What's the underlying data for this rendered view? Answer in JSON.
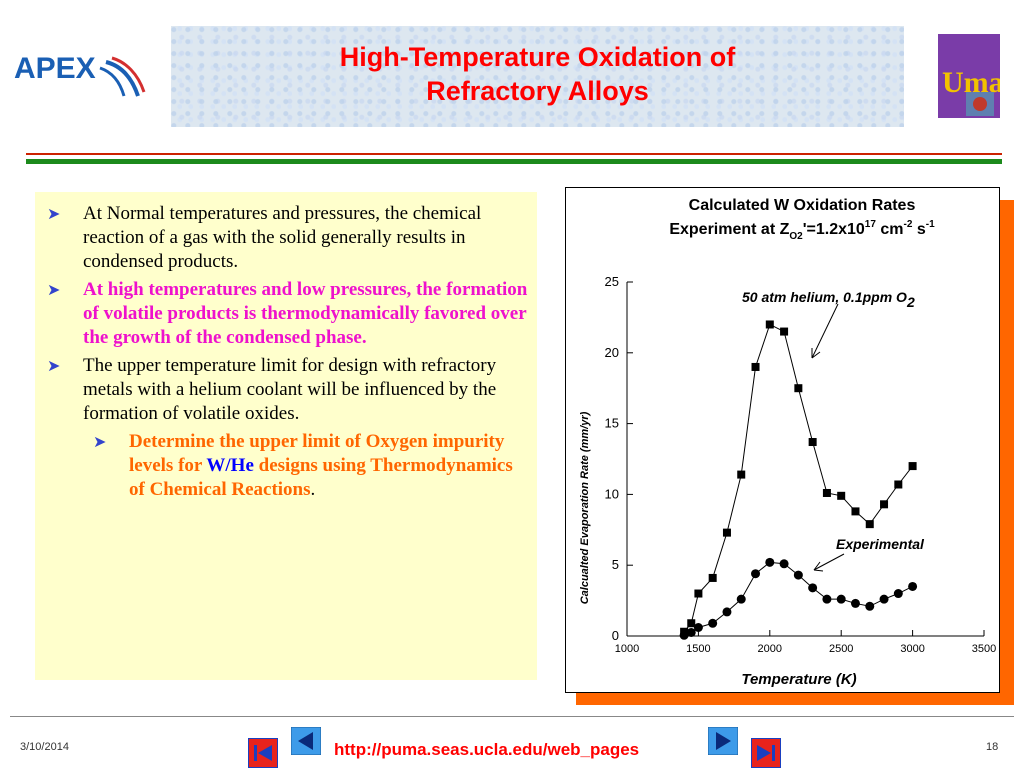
{
  "header": {
    "title_line1": "High-Temperature Oxidation of",
    "title_line2": "Refractory Alloys",
    "logo_left_text": "APEX",
    "logo_right_text": "UmaT"
  },
  "bullets": [
    {
      "level": 1,
      "style": "normal",
      "text": "At Normal temperatures and pressures, the chemical reaction of a gas with the solid generally results in condensed products."
    },
    {
      "level": 1,
      "style": "magenta",
      "text": "At high temperatures and low pressures, the formation of volatile products is thermodynamically favored over the growth of the condensed phase."
    },
    {
      "level": 1,
      "style": "normal",
      "text": "The upper temperature limit for design with refractory metals with a helium coolant will be influenced by the formation of volatile oxides."
    },
    {
      "level": 2,
      "style": "orange",
      "text_a": "Determine the upper limit of Oxygen impurity levels for ",
      "text_b": "W/He",
      "text_c": " designs using Thermodynamics of Chemical Reactions",
      "text_d": "."
    }
  ],
  "chart_data": {
    "type": "scatter",
    "title_line1": "Calculated W Oxidation Rates",
    "title_line2_prefix": "Experiment at Z",
    "title_line2_sub": "O2",
    "title_line2_mid": "'=1.2x10",
    "title_line2_sup1": "17",
    "title_line2_unit": " cm",
    "title_line2_sup2": "-2",
    "title_line2_s": " s",
    "title_line2_sup3": "-1",
    "xlabel": "Temperature (K)",
    "ylabel": "Calcualted Evaporation Rate (mm/yr)",
    "xlim": [
      1000,
      3500
    ],
    "ylim": [
      0,
      25
    ],
    "xticks": [
      1000,
      1500,
      2000,
      2500,
      3000,
      3500
    ],
    "yticks": [
      0,
      5,
      10,
      15,
      20,
      25
    ],
    "series": [
      {
        "name": "50 atm helium, 0.1ppm O2",
        "marker": "square",
        "points": [
          [
            1400,
            0.3
          ],
          [
            1450,
            0.9
          ],
          [
            1500,
            3.0
          ],
          [
            1600,
            4.1
          ],
          [
            1700,
            7.3
          ],
          [
            1800,
            11.4
          ],
          [
            1900,
            19.0
          ],
          [
            2000,
            22.0
          ],
          [
            2100,
            21.5
          ],
          [
            2200,
            17.5
          ],
          [
            2300,
            13.7
          ],
          [
            2400,
            10.1
          ],
          [
            2500,
            9.9
          ],
          [
            2600,
            8.8
          ],
          [
            2700,
            7.9
          ],
          [
            2800,
            9.3
          ],
          [
            2900,
            10.7
          ],
          [
            3000,
            12.0
          ]
        ]
      },
      {
        "name": "Experimental",
        "marker": "circle",
        "points": [
          [
            1400,
            0.05
          ],
          [
            1450,
            0.25
          ],
          [
            1500,
            0.6
          ],
          [
            1600,
            0.9
          ],
          [
            1700,
            1.7
          ],
          [
            1800,
            2.6
          ],
          [
            1900,
            4.4
          ],
          [
            2000,
            5.2
          ],
          [
            2100,
            5.1
          ],
          [
            2200,
            4.3
          ],
          [
            2300,
            3.4
          ],
          [
            2400,
            2.6
          ],
          [
            2500,
            2.6
          ],
          [
            2600,
            2.3
          ],
          [
            2700,
            2.1
          ],
          [
            2800,
            2.6
          ],
          [
            2900,
            3.0
          ],
          [
            3000,
            3.5
          ]
        ]
      }
    ],
    "annotations": [
      {
        "text": "50 atm helium, 0.1ppm O",
        "sub": "2"
      },
      {
        "text": "Experimental"
      }
    ]
  },
  "footer": {
    "date": "3/10/2014",
    "url": "http://puma.seas.ucla.edu/web_pages",
    "page_number": "18"
  },
  "colors": {
    "title": "#ff0000",
    "magenta": "#ee11cc",
    "orange": "#ff6600",
    "blue": "#0000ff",
    "panel": "#ffffcc",
    "chart_shadow": "#ff6600",
    "rule_red": "#cc2200",
    "rule_green": "#1c8a1c"
  },
  "icons": [
    "first-slide-icon",
    "previous-slide-icon",
    "next-slide-icon",
    "last-slide-icon"
  ]
}
